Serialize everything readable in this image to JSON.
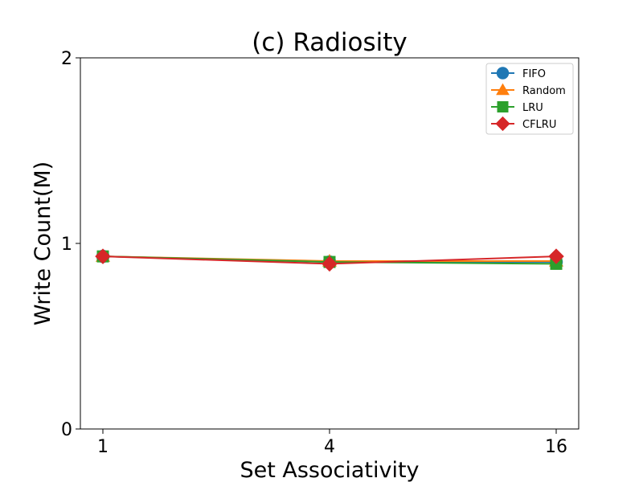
{
  "chart_data": {
    "type": "line",
    "title": "(c) Radiosity",
    "xlabel": "Set Associativity",
    "ylabel": "Write Count(M)",
    "x": [
      "1",
      "4",
      "16"
    ],
    "yticks": [
      "0",
      "1",
      "2"
    ],
    "ylim": [
      0,
      2
    ],
    "grid": false,
    "legend_position": "top-right",
    "series": [
      {
        "name": "FIFO",
        "values": [
          0.93,
          0.9,
          0.9
        ],
        "color": "#1f77b4",
        "marker": "circle"
      },
      {
        "name": "Random",
        "values": [
          0.93,
          0.905,
          0.905
        ],
        "color": "#ff7f0e",
        "marker": "triangle"
      },
      {
        "name": "LRU",
        "values": [
          0.93,
          0.9,
          0.89
        ],
        "color": "#2ca02c",
        "marker": "square"
      },
      {
        "name": "CFLRU",
        "values": [
          0.93,
          0.89,
          0.93
        ],
        "color": "#d62728",
        "marker": "diamond"
      }
    ]
  }
}
